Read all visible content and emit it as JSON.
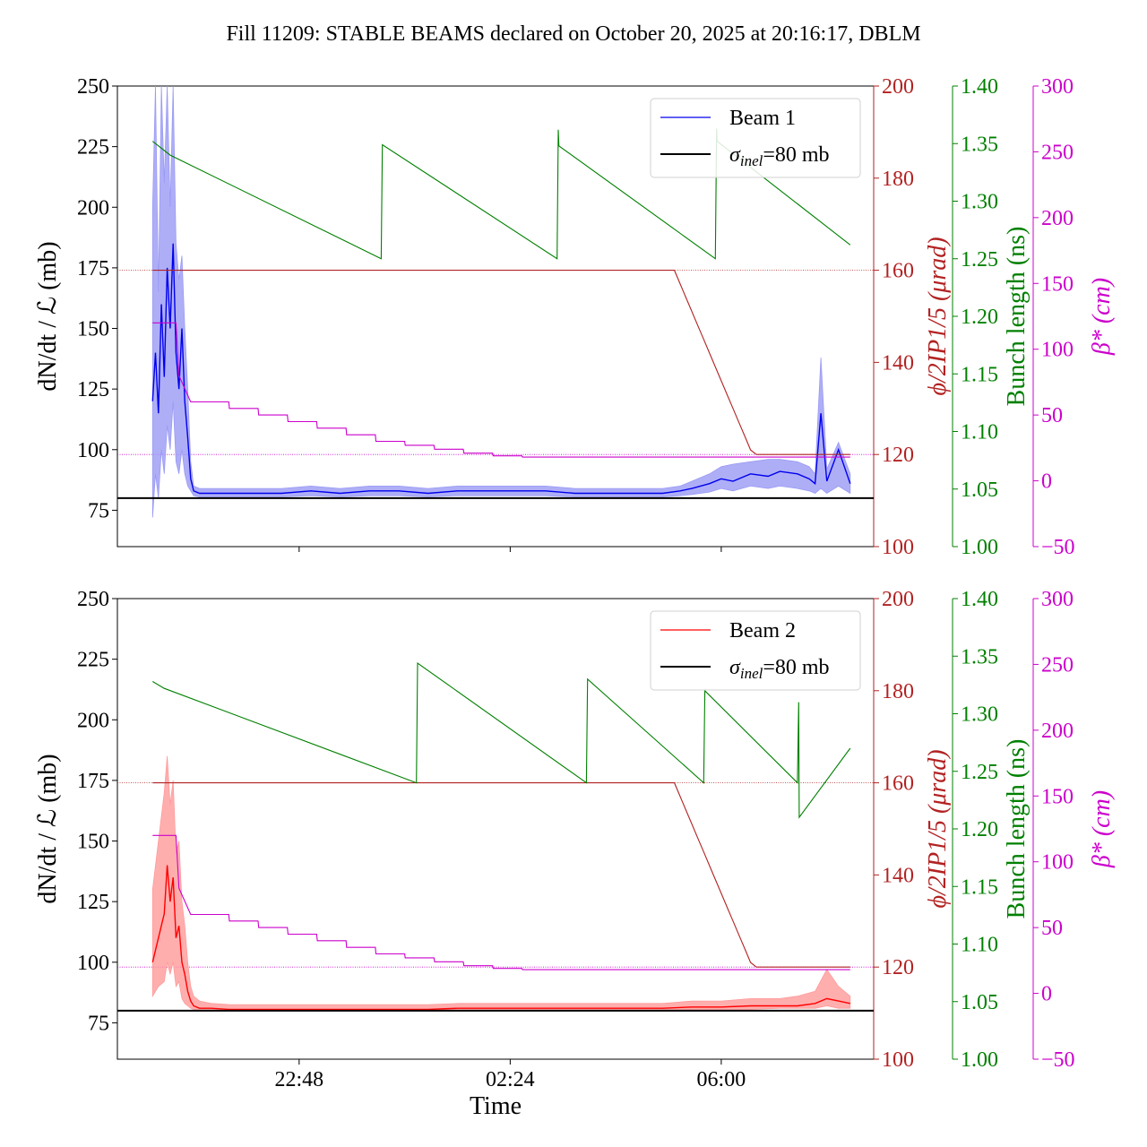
{
  "title": "Fill 11209: STABLE BEAMS declared on October 20, 2025 at 20:16:17, DBLM",
  "xlabel": "Time",
  "colors": {
    "beam1": "#0000ee",
    "beam1_band": "#9a9af5",
    "beam2": "#ff0000",
    "beam2_band": "#ff9a9a",
    "crossing": "#b22222",
    "bunch": "#008000",
    "beta": "#cc00cc",
    "sigma": "#000000"
  },
  "chart_data": [
    {
      "type": "line",
      "panel": "top",
      "x_ticks": [
        "22:48",
        "02:24",
        "06:00"
      ],
      "x_tick_hours": [
        22.8,
        26.4,
        30.0
      ],
      "xlim_hours": [
        19.7,
        32.6
      ],
      "ylabel_main": "dN/dt / ℒ (mb)",
      "ylabel_crossing": "ϕ/2IP1/5 (μrad)",
      "ylabel_bunch": "Bunch length (ns)",
      "ylabel_beta": "β* (cm)",
      "y_ticks_main": [
        75,
        100,
        125,
        150,
        175,
        200,
        225,
        250
      ],
      "ylim_main": [
        60,
        250
      ],
      "y_ticks_crossing": [
        100,
        120,
        140,
        160,
        180,
        200
      ],
      "ylim_crossing": [
        100,
        200
      ],
      "y_ticks_bunch": [
        "1.00",
        "1.05",
        "1.10",
        "1.15",
        "1.20",
        "1.25",
        "1.30",
        "1.35",
        "1.40"
      ],
      "ylim_bunch": [
        1.0,
        1.4
      ],
      "y_ticks_beta": [
        "−50",
        "0",
        "50",
        "100",
        "150",
        "200",
        "250",
        "300"
      ],
      "ylim_beta": [
        -50,
        300
      ],
      "legend": {
        "series": "Beam 1",
        "sigma_label": "σinel=80 mb",
        "sigma_main": "σ",
        "sigma_sub": "inel",
        "sigma_rest": "=80 mb",
        "placement": "upper-right"
      },
      "sigma_inel": 80,
      "series": [
        {
          "name": "Beam 1",
          "axis": "main",
          "x": [
            20.3,
            20.35,
            20.4,
            20.45,
            20.5,
            20.55,
            20.6,
            20.65,
            20.7,
            20.75,
            20.8,
            20.85,
            20.9,
            20.95,
            21.0,
            21.1,
            21.3,
            21.6,
            22.0,
            22.5,
            23.0,
            23.5,
            24.0,
            24.5,
            25.0,
            25.5,
            26.0,
            26.5,
            27.0,
            27.5,
            28.0,
            28.5,
            29.0,
            29.3,
            29.5,
            29.8,
            30.0,
            30.2,
            30.5,
            30.8,
            31.0,
            31.3,
            31.5,
            31.6,
            31.7,
            31.8,
            32.0,
            32.2
          ],
          "y": [
            120,
            140,
            115,
            160,
            130,
            175,
            150,
            185,
            140,
            125,
            150,
            120,
            105,
            88,
            83,
            82,
            82,
            82,
            82,
            82,
            83,
            82,
            83,
            83,
            82,
            83,
            83,
            83,
            83,
            82,
            82,
            82,
            82,
            83,
            84,
            86,
            88,
            87,
            90,
            89,
            91,
            90,
            88,
            86,
            115,
            87,
            100,
            86
          ],
          "band": {
            "upper": [
              200,
              250,
              165,
              250,
              210,
              250,
              200,
              250,
              185,
              170,
              180,
              150,
              125,
              95,
              85,
              84,
              84,
              84,
              84,
              84,
              85,
              84,
              85,
              85,
              84,
              85,
              85,
              85,
              85,
              84,
              84,
              84,
              84,
              85,
              87,
              90,
              93,
              94,
              95,
              96,
              96,
              95,
              93,
              90,
              138,
              92,
              103,
              90
            ],
            "lower": [
              72,
              90,
              80,
              100,
              90,
              110,
              100,
              120,
              95,
              90,
              100,
              90,
              85,
              83,
              81,
              80.5,
              80.5,
              80.5,
              80.5,
              80.5,
              81,
              80.5,
              81,
              81,
              80.5,
              81,
              81,
              81,
              81,
              80.5,
              80.5,
              80.5,
              80.5,
              81,
              81.5,
              82.5,
              84,
              83,
              85,
              84,
              85,
              84,
              83,
              82,
              84,
              82,
              85,
              82
            ]
          }
        },
        {
          "name": "",
          "axis": "crossing",
          "x": [
            20.3,
            29.2,
            29.3,
            29.4,
            29.5,
            29.6,
            29.7,
            29.8,
            29.9,
            30.0,
            30.1,
            30.2,
            30.3,
            30.4,
            30.5,
            30.6,
            30.7,
            30.8,
            30.9,
            31.0,
            32.2
          ],
          "y": [
            160,
            160,
            157,
            154,
            151,
            148,
            145,
            142,
            139,
            136,
            133,
            130,
            127,
            124,
            121,
            120,
            120,
            120,
            120,
            120,
            120
          ]
        },
        {
          "name": "",
          "axis": "beta",
          "x": [
            20.3,
            20.7,
            20.75,
            20.95,
            21.0,
            21.6,
            21.61,
            22.1,
            22.11,
            22.6,
            22.61,
            23.1,
            23.11,
            23.6,
            23.61,
            24.1,
            24.11,
            24.6,
            24.61,
            25.1,
            25.11,
            25.6,
            25.61,
            26.1,
            26.11,
            26.6,
            26.61,
            32.2
          ],
          "y": [
            120,
            120,
            80,
            60,
            60,
            60,
            55,
            55,
            50,
            50,
            45,
            45,
            40,
            40,
            35,
            35,
            30,
            30,
            27,
            27,
            24,
            24,
            21,
            21,
            19,
            19,
            18,
            18
          ]
        },
        {
          "name": "",
          "axis": "bunch",
          "x": [
            20.3,
            20.6,
            24.2,
            24.22,
            27.2,
            27.22,
            27.23,
            29.9,
            29.92,
            29.93,
            32.2
          ],
          "y": [
            1.352,
            1.34,
            1.25,
            1.349,
            1.25,
            1.362,
            1.348,
            1.25,
            1.363,
            1.352,
            1.262
          ]
        }
      ]
    },
    {
      "type": "line",
      "panel": "bottom",
      "x_ticks": [
        "22:48",
        "02:24",
        "06:00"
      ],
      "x_tick_hours": [
        22.8,
        26.4,
        30.0
      ],
      "xlim_hours": [
        19.7,
        32.6
      ],
      "ylabel_main": "dN/dt / ℒ (mb)",
      "ylabel_crossing": "ϕ/2IP1/5 (μrad)",
      "ylabel_bunch": "Bunch length (ns)",
      "ylabel_beta": "β* (cm)",
      "y_ticks_main": [
        75,
        100,
        125,
        150,
        175,
        200,
        225,
        250
      ],
      "ylim_main": [
        60,
        250
      ],
      "y_ticks_crossing": [
        100,
        120,
        140,
        160,
        180,
        200
      ],
      "ylim_crossing": [
        100,
        200
      ],
      "y_ticks_bunch": [
        "1.00",
        "1.05",
        "1.10",
        "1.15",
        "1.20",
        "1.25",
        "1.30",
        "1.35",
        "1.40"
      ],
      "ylim_bunch": [
        1.0,
        1.4
      ],
      "y_ticks_beta": [
        "−50",
        "0",
        "50",
        "100",
        "150",
        "200",
        "250",
        "300"
      ],
      "ylim_beta": [
        -50,
        300
      ],
      "legend": {
        "series": "Beam 2",
        "sigma_label": "σinel=80 mb",
        "sigma_main": "σ",
        "sigma_sub": "inel",
        "sigma_rest": "=80 mb",
        "placement": "upper-right"
      },
      "sigma_inel": 80,
      "series": [
        {
          "name": "Beam 2",
          "axis": "main",
          "x": [
            20.3,
            20.4,
            20.5,
            20.55,
            20.6,
            20.65,
            20.7,
            20.75,
            20.8,
            20.85,
            20.9,
            20.95,
            21.0,
            21.1,
            21.3,
            21.6,
            22.0,
            22.5,
            23.0,
            23.5,
            24.0,
            24.5,
            25.0,
            25.5,
            26.0,
            26.5,
            27.0,
            27.5,
            28.0,
            28.5,
            29.0,
            29.5,
            30.0,
            30.5,
            31.0,
            31.3,
            31.6,
            31.8,
            32.0,
            32.2
          ],
          "y": [
            100,
            110,
            120,
            140,
            125,
            135,
            110,
            115,
            100,
            95,
            88,
            84,
            82,
            81,
            81,
            80.5,
            80.5,
            80.5,
            80.5,
            80.5,
            80.5,
            80.5,
            80.5,
            81,
            81,
            81,
            81,
            81,
            81,
            81,
            81,
            81.5,
            81.5,
            82,
            82,
            82,
            83,
            85,
            84,
            83
          ],
          "band": {
            "upper": [
              130,
              150,
              170,
              185,
              165,
              175,
              145,
              150,
              125,
              115,
              100,
              90,
              86,
              84,
              83,
              82.5,
              82.5,
              82.5,
              82.5,
              82.5,
              82.5,
              82.5,
              82.5,
              83,
              83,
              83,
              83,
              83,
              83,
              83,
              83,
              84,
              84,
              85,
              85,
              86,
              88,
              97,
              90,
              86
            ],
            "lower": [
              86,
              90,
              92,
              100,
              95,
              100,
              90,
              92,
              85,
              83,
              82,
              81,
              80.5,
              80,
              80,
              80,
              80,
              80,
              80,
              80,
              80,
              80,
              80,
              80,
              80,
              80,
              80,
              80,
              80,
              80,
              80,
              80.5,
              80.5,
              80.5,
              81,
              81,
              81,
              82,
              81,
              81
            ]
          }
        },
        {
          "name": "",
          "axis": "crossing",
          "x": [
            20.3,
            29.2,
            29.3,
            29.4,
            29.5,
            29.6,
            29.7,
            29.8,
            29.9,
            30.0,
            30.1,
            30.2,
            30.3,
            30.4,
            30.5,
            30.6,
            30.7,
            30.8,
            30.9,
            31.0,
            32.2
          ],
          "y": [
            160,
            160,
            157,
            154,
            151,
            148,
            145,
            142,
            139,
            136,
            133,
            130,
            127,
            124,
            121,
            120,
            120,
            120,
            120,
            120,
            120
          ]
        },
        {
          "name": "",
          "axis": "beta",
          "x": [
            20.3,
            20.7,
            20.75,
            20.95,
            21.0,
            21.6,
            21.61,
            22.1,
            22.11,
            22.6,
            22.61,
            23.1,
            23.11,
            23.6,
            23.61,
            24.1,
            24.11,
            24.6,
            24.61,
            25.1,
            25.11,
            25.6,
            25.61,
            26.1,
            26.11,
            26.6,
            26.61,
            32.2
          ],
          "y": [
            120,
            120,
            80,
            60,
            60,
            60,
            55,
            55,
            50,
            50,
            45,
            45,
            40,
            40,
            35,
            35,
            30,
            30,
            27,
            27,
            24,
            24,
            21,
            21,
            19,
            19,
            18,
            18
          ]
        },
        {
          "name": "",
          "axis": "bunch",
          "x": [
            20.3,
            20.5,
            24.8,
            24.82,
            27.7,
            27.72,
            29.7,
            29.72,
            31.3,
            31.32,
            31.33,
            32.2
          ],
          "y": [
            1.328,
            1.322,
            1.24,
            1.344,
            1.24,
            1.33,
            1.24,
            1.32,
            1.24,
            1.31,
            1.21,
            1.27
          ]
        }
      ]
    }
  ]
}
